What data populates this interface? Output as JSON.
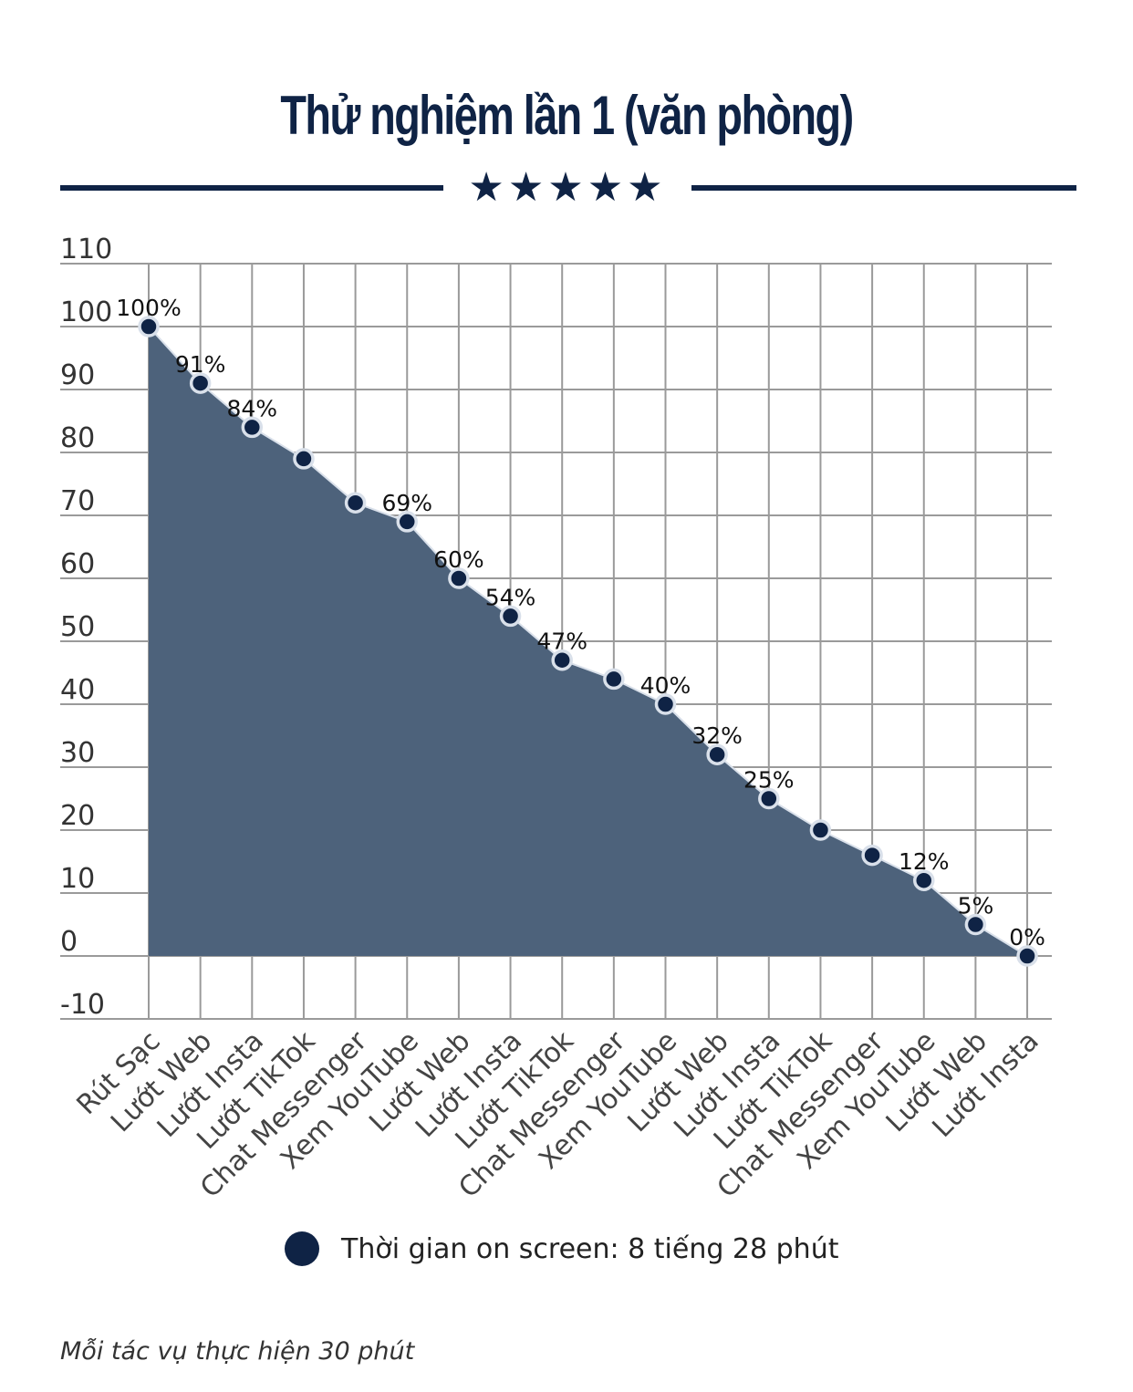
{
  "header": {
    "title": "Thử nghiệm lần 1 (văn phòng)",
    "stars": "★★★★★"
  },
  "colors": {
    "navy": "#0f2345",
    "area_fill": "#4d627b",
    "grid": "#9a9a9a",
    "marker_ring": "#d9e0ea"
  },
  "chart_data": {
    "type": "area",
    "title": "Thử nghiệm lần 1 (văn phòng)",
    "xlabel": "",
    "ylabel": "",
    "ylim": [
      -10,
      110
    ],
    "yticks": [
      110,
      100,
      90,
      80,
      70,
      60,
      50,
      40,
      30,
      20,
      10,
      0,
      -10
    ],
    "grid": true,
    "legend": "bottom-center",
    "categories": [
      "Rút Sạc",
      "Lướt Web",
      "Lướt Insta",
      "Lướt TikTok",
      "Chat Messenger",
      "Xem YouTube",
      "Lướt Web",
      "Lướt Insta",
      "Lướt TikTok",
      "Chat Messenger",
      "Xem YouTube",
      "Lướt Web",
      "Lướt Insta",
      "Lướt TikTok",
      "Chat Messenger",
      "Xem YouTube",
      "Lướt Web",
      "Lướt Insta"
    ],
    "series": [
      {
        "name": "Thời gian on screen: 8 tiếng 28 phút",
        "values": [
          100,
          91,
          84,
          79,
          72,
          69,
          60,
          54,
          47,
          44,
          40,
          32,
          25,
          20,
          16,
          12,
          5,
          0
        ],
        "data_labels": [
          "100%",
          "91%",
          "84%",
          "",
          "",
          "69%",
          "60%",
          "54%",
          "47%",
          "",
          "40%",
          "32%",
          "25%",
          "",
          "",
          "12%",
          "5%",
          "0%"
        ]
      }
    ]
  },
  "legend": {
    "label": "Thời gian on screen: 8 tiếng 28 phút"
  },
  "footnote": "Mỗi tác vụ thực hiện 30 phút"
}
